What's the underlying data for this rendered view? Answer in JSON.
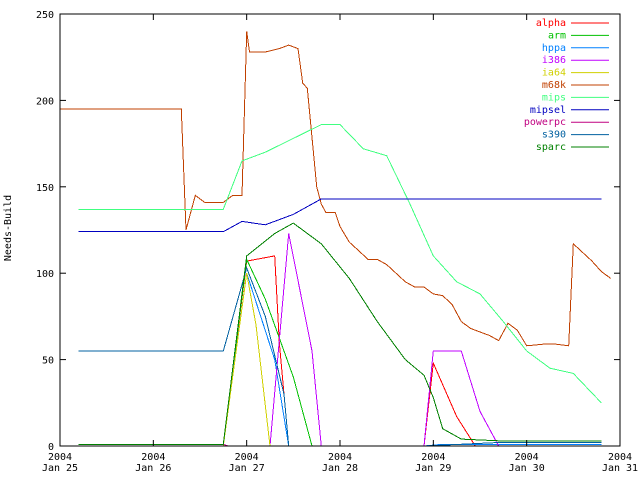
{
  "chart_data": {
    "type": "line",
    "title": "",
    "xlabel": "",
    "ylabel": "Needs-Build",
    "grid": false,
    "legend_position": "top-right",
    "xlim": [
      0,
      6
    ],
    "ylim": [
      0,
      250
    ],
    "y_ticks": [
      0,
      50,
      100,
      150,
      200,
      250
    ],
    "x_ticks": [
      {
        "value": 0,
        "top": "2004",
        "bottom": "Jan 25"
      },
      {
        "value": 1,
        "top": "2004",
        "bottom": "Jan 26"
      },
      {
        "value": 2,
        "top": "2004",
        "bottom": "Jan 27"
      },
      {
        "value": 3,
        "top": "2004",
        "bottom": "Jan 28"
      },
      {
        "value": 4,
        "top": "2004",
        "bottom": "Jan 29"
      },
      {
        "value": 5,
        "top": "2004",
        "bottom": "Jan 30"
      },
      {
        "value": 6,
        "top": "2004",
        "bottom": "Jan 31"
      }
    ],
    "series": [
      {
        "name": "alpha",
        "color": "#ff0000",
        "points": [
          [
            0.2,
            1
          ],
          [
            1.75,
            1
          ],
          [
            2.0,
            107
          ],
          [
            2.3,
            110
          ],
          [
            2.35,
            60
          ],
          [
            2.45,
            0
          ],
          [
            3.9,
            0
          ],
          [
            4.0,
            48
          ],
          [
            4.25,
            17
          ],
          [
            4.45,
            0
          ],
          [
            5.8,
            0
          ]
        ]
      },
      {
        "name": "arm",
        "color": "#00c000",
        "points": [
          [
            0.2,
            1
          ],
          [
            1.75,
            1
          ],
          [
            2.0,
            108
          ],
          [
            2.2,
            85
          ],
          [
            2.5,
            40
          ],
          [
            2.7,
            0
          ],
          [
            3.9,
            0
          ],
          [
            4.1,
            1
          ],
          [
            5.8,
            1
          ]
        ]
      },
      {
        "name": "hppa",
        "color": "#0080ff",
        "points": [
          [
            0.2,
            1
          ],
          [
            1.75,
            1
          ],
          [
            2.0,
            100
          ],
          [
            2.3,
            50
          ],
          [
            2.45,
            0
          ],
          [
            3.0,
            0
          ],
          [
            3.9,
            0
          ],
          [
            4.1,
            1
          ],
          [
            5.8,
            1
          ]
        ]
      },
      {
        "name": "i386",
        "color": "#c000ff",
        "points": [
          [
            1.75,
            0
          ],
          [
            2.1,
            0
          ],
          [
            2.25,
            0
          ],
          [
            2.45,
            123
          ],
          [
            2.7,
            55
          ],
          [
            2.8,
            0
          ],
          [
            3.9,
            0
          ],
          [
            4.0,
            55
          ],
          [
            4.3,
            55
          ],
          [
            4.5,
            20
          ],
          [
            4.7,
            0
          ],
          [
            5.8,
            0
          ]
        ]
      },
      {
        "name": "ia64",
        "color": "#d0d000",
        "points": [
          [
            1.75,
            0
          ],
          [
            2.0,
            100
          ],
          [
            2.1,
            70
          ],
          [
            2.25,
            0
          ],
          [
            2.35,
            0
          ]
        ]
      },
      {
        "name": "m68k",
        "color": "#c04000",
        "points": [
          [
            0.0,
            195
          ],
          [
            1.3,
            195
          ],
          [
            1.35,
            125
          ],
          [
            1.45,
            145
          ],
          [
            1.55,
            141
          ],
          [
            1.65,
            141
          ],
          [
            1.75,
            141
          ],
          [
            1.85,
            145
          ],
          [
            1.95,
            145
          ],
          [
            2.0,
            240
          ],
          [
            2.03,
            228
          ],
          [
            2.2,
            228
          ],
          [
            2.35,
            230
          ],
          [
            2.45,
            232
          ],
          [
            2.55,
            230
          ],
          [
            2.6,
            210
          ],
          [
            2.65,
            207
          ],
          [
            2.75,
            150
          ],
          [
            2.8,
            140
          ],
          [
            2.85,
            135
          ],
          [
            2.95,
            135
          ],
          [
            3.0,
            127
          ],
          [
            3.1,
            118
          ],
          [
            3.2,
            113
          ],
          [
            3.3,
            108
          ],
          [
            3.4,
            108
          ],
          [
            3.5,
            105
          ],
          [
            3.6,
            100
          ],
          [
            3.7,
            95
          ],
          [
            3.8,
            92
          ],
          [
            3.9,
            92
          ],
          [
            4.0,
            88
          ],
          [
            4.1,
            87
          ],
          [
            4.2,
            82
          ],
          [
            4.3,
            72
          ],
          [
            4.4,
            68
          ],
          [
            4.5,
            66
          ],
          [
            4.6,
            64
          ],
          [
            4.7,
            61
          ],
          [
            4.8,
            71
          ],
          [
            4.9,
            67
          ],
          [
            5.0,
            58
          ],
          [
            5.2,
            59
          ],
          [
            5.3,
            59
          ],
          [
            5.45,
            58
          ],
          [
            5.5,
            117
          ],
          [
            5.6,
            112
          ],
          [
            5.7,
            107
          ],
          [
            5.8,
            101
          ],
          [
            5.9,
            97
          ]
        ]
      },
      {
        "name": "mips",
        "color": "#40ff80",
        "points": [
          [
            0.2,
            137
          ],
          [
            1.75,
            137
          ],
          [
            1.95,
            165
          ],
          [
            2.2,
            170
          ],
          [
            2.5,
            178
          ],
          [
            2.8,
            186
          ],
          [
            3.0,
            186
          ],
          [
            3.25,
            172
          ],
          [
            3.5,
            168
          ],
          [
            3.75,
            140
          ],
          [
            4.0,
            110
          ],
          [
            4.25,
            95
          ],
          [
            4.5,
            88
          ],
          [
            4.75,
            72
          ],
          [
            5.0,
            55
          ],
          [
            5.25,
            45
          ],
          [
            5.5,
            42
          ],
          [
            5.8,
            25
          ]
        ]
      },
      {
        "name": "mipsel",
        "color": "#0000c0",
        "points": [
          [
            0.2,
            124
          ],
          [
            1.75,
            124
          ],
          [
            1.95,
            130
          ],
          [
            2.2,
            128
          ],
          [
            2.5,
            134
          ],
          [
            2.8,
            143
          ],
          [
            5.8,
            143
          ]
        ]
      },
      {
        "name": "powerpc",
        "color": "#c00080",
        "points": [
          [
            0.2,
            1
          ],
          [
            1.75,
            1
          ],
          [
            1.8,
            0
          ],
          [
            5.8,
            0
          ]
        ]
      },
      {
        "name": "s390",
        "color": "#0060a0",
        "points": [
          [
            0.2,
            55
          ],
          [
            1.75,
            55
          ],
          [
            2.0,
            103
          ],
          [
            2.2,
            75
          ],
          [
            2.4,
            30
          ],
          [
            2.45,
            0
          ],
          [
            3.9,
            0
          ],
          [
            4.7,
            2
          ],
          [
            5.8,
            2
          ]
        ]
      },
      {
        "name": "sparc",
        "color": "#008000",
        "points": [
          [
            0.2,
            1
          ],
          [
            1.75,
            1
          ],
          [
            2.0,
            110
          ],
          [
            2.3,
            123
          ],
          [
            2.5,
            129
          ],
          [
            2.8,
            117
          ],
          [
            3.1,
            97
          ],
          [
            3.4,
            72
          ],
          [
            3.7,
            50
          ],
          [
            3.9,
            41
          ],
          [
            4.0,
            28
          ],
          [
            4.1,
            10
          ],
          [
            4.3,
            4
          ],
          [
            4.7,
            3
          ],
          [
            5.8,
            3
          ]
        ]
      }
    ]
  }
}
